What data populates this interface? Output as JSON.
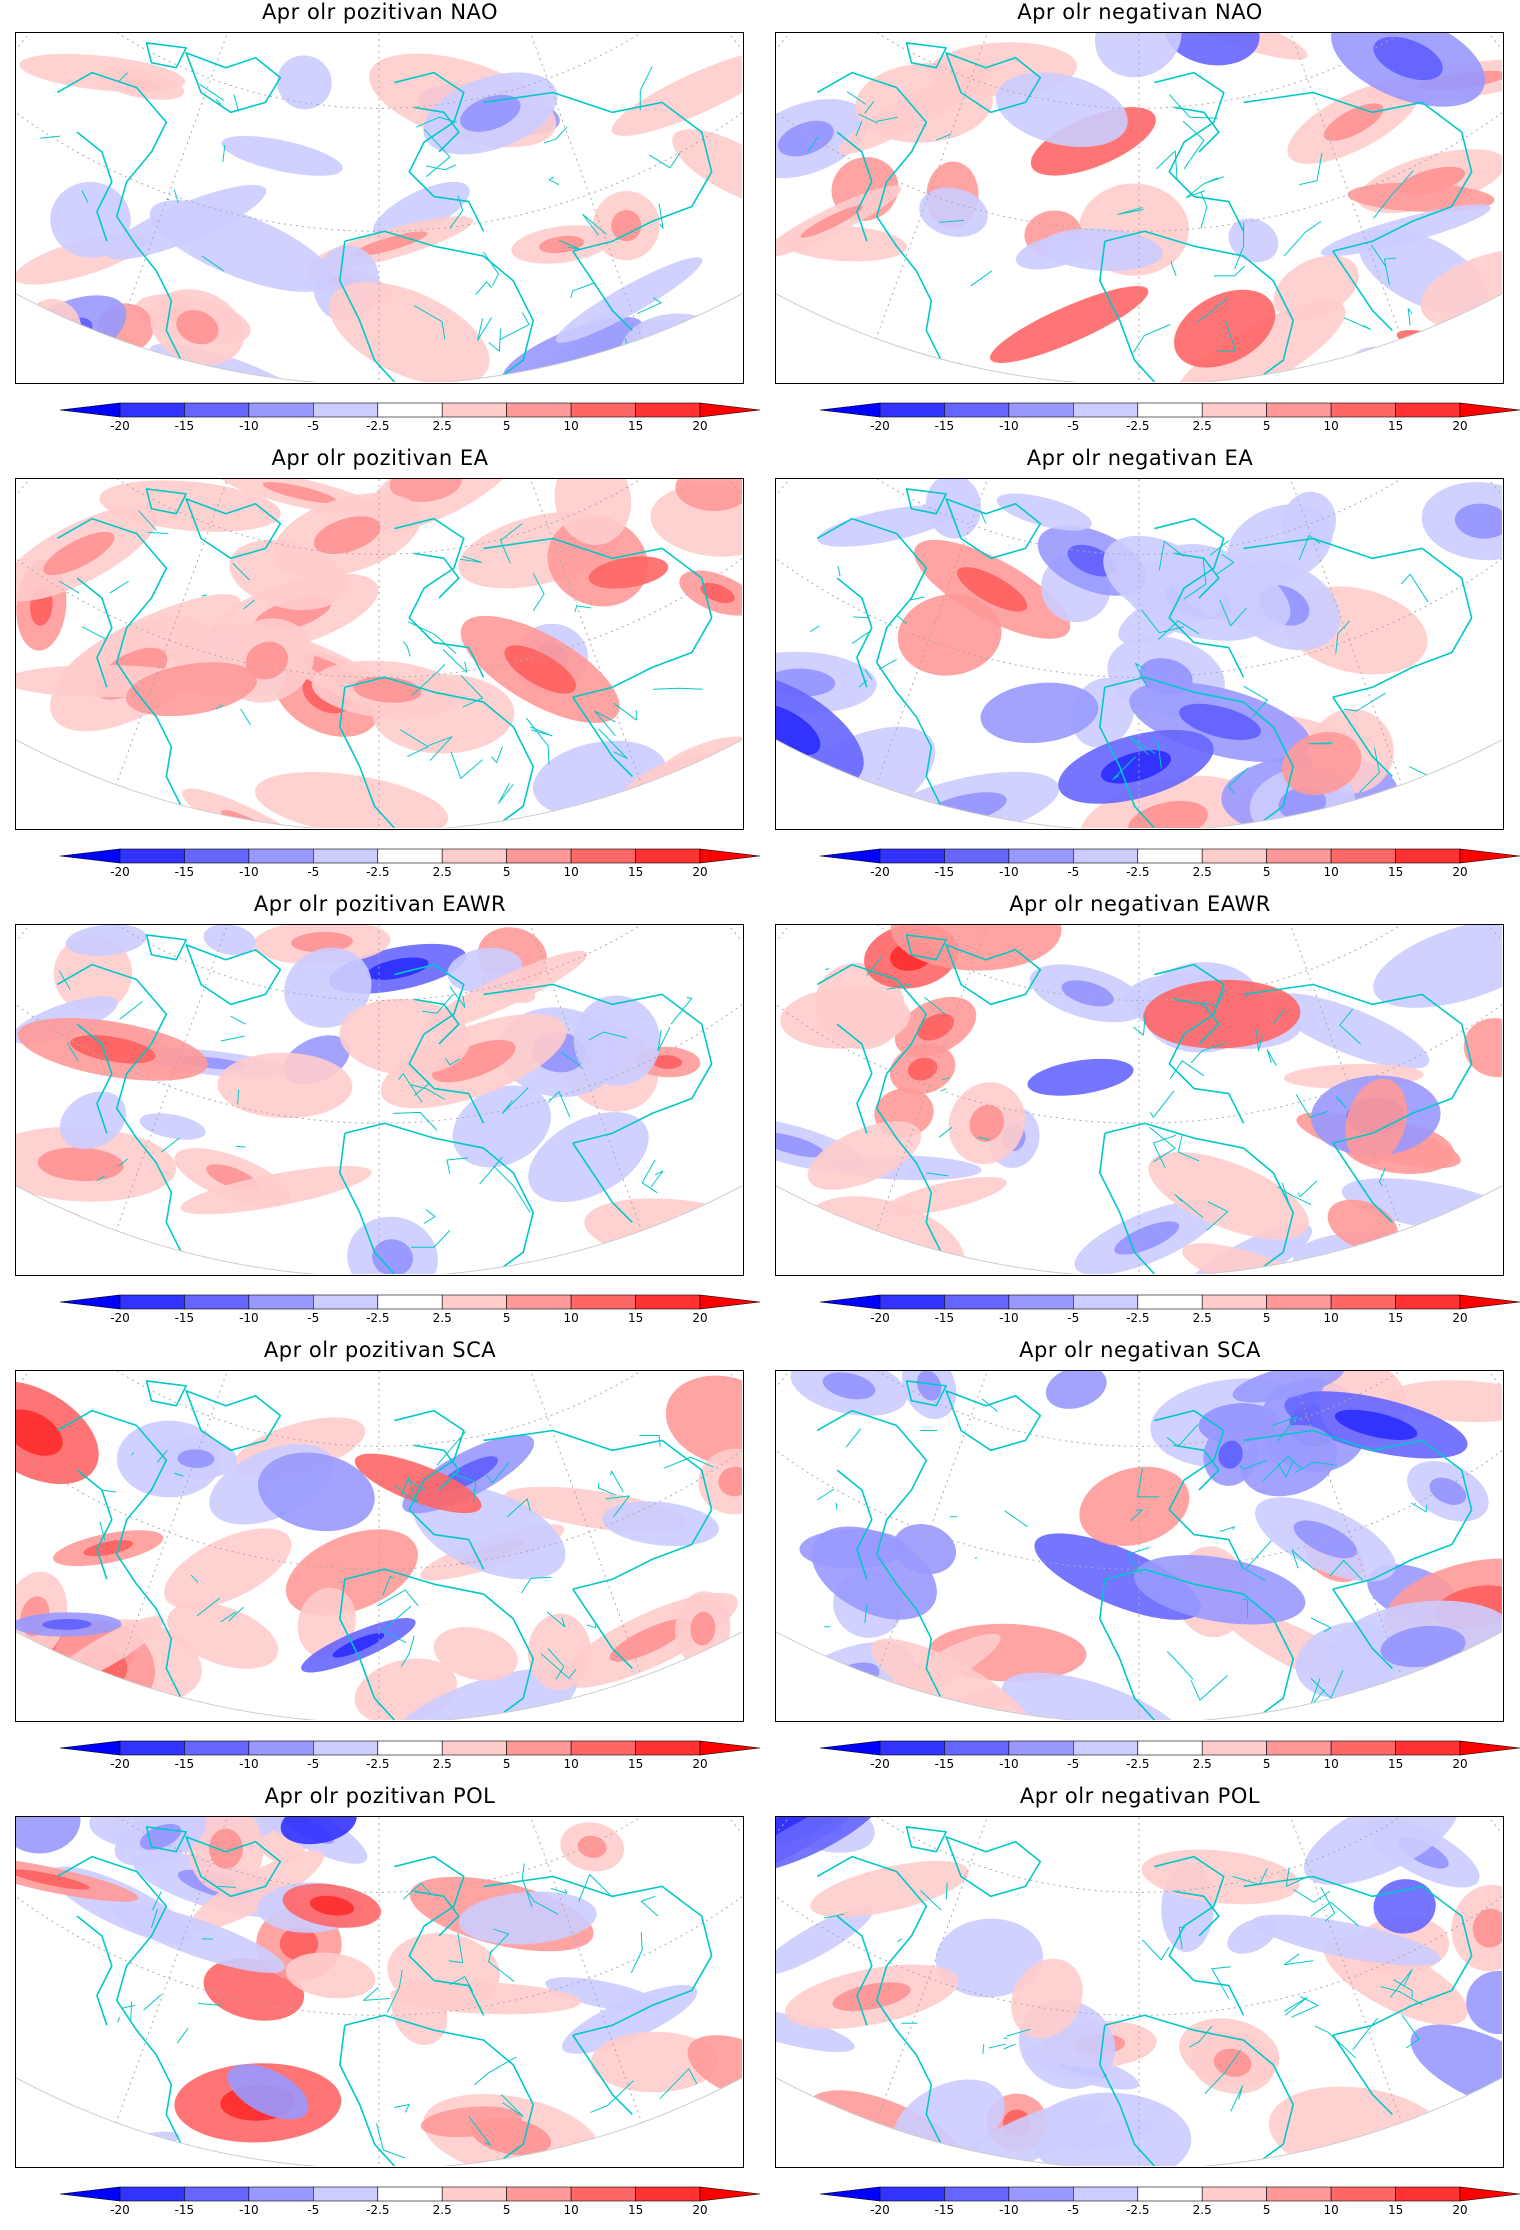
{
  "panels": [
    {
      "title": "Apr olr pozitivan NAO",
      "pattern": "NAO",
      "phase": "pozitivan",
      "anomaly_sign": "mixed"
    },
    {
      "title": "Apr olr negativan NAO",
      "pattern": "NAO",
      "phase": "negativan",
      "anomaly_sign": "mixed"
    },
    {
      "title": "Apr olr pozitivan EA",
      "pattern": "EA",
      "phase": "pozitivan",
      "anomaly_sign": "mostly-positive"
    },
    {
      "title": "Apr olr negativan EA",
      "pattern": "EA",
      "phase": "negativan",
      "anomaly_sign": "mostly-negative"
    },
    {
      "title": "Apr olr pozitivan EAWR",
      "pattern": "EAWR",
      "phase": "pozitivan",
      "anomaly_sign": "mixed"
    },
    {
      "title": "Apr olr negativan EAWR",
      "pattern": "EAWR",
      "phase": "negativan",
      "anomaly_sign": "mixed"
    },
    {
      "title": "Apr olr pozitivan SCA",
      "pattern": "SCA",
      "phase": "pozitivan",
      "anomaly_sign": "mostly-positive"
    },
    {
      "title": "Apr olr negativan SCA",
      "pattern": "SCA",
      "phase": "negativan",
      "anomaly_sign": "mostly-negative"
    },
    {
      "title": "Apr olr pozitivan POL",
      "pattern": "POL",
      "phase": "pozitivan",
      "anomaly_sign": "strong-mixed"
    },
    {
      "title": "Apr olr negativan POL",
      "pattern": "POL",
      "phase": "negativan",
      "anomaly_sign": "mixed"
    }
  ],
  "colorbar": {
    "ticks": [
      "-20",
      "-15",
      "-10",
      "-5",
      "-2.5",
      "2.5",
      "5",
      "10",
      "15",
      "20"
    ],
    "colors": [
      "#0000ff",
      "#3333ff",
      "#6666ff",
      "#9999ff",
      "#ccccff",
      "#ffffff",
      "#ffcccc",
      "#ff9999",
      "#ff6666",
      "#ff3333",
      "#ff0000"
    ]
  },
  "map_style": {
    "coastline_color": "#00c8c8",
    "grid_color": "#aaaaaa",
    "projection": "polar-stereographic-hemisphere"
  }
}
